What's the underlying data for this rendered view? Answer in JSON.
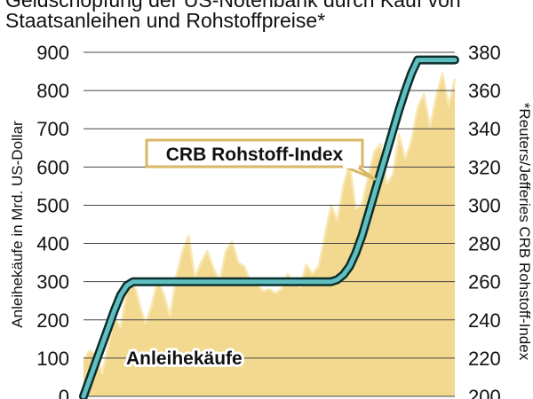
{
  "title_partial": "Geldschöpfung der US-Notenbank durch Kauf von",
  "title": "Staatsanleihen und Rohstoffpreise*",
  "chart_data": {
    "type": "area",
    "x": [
      0,
      1,
      2,
      3,
      4,
      5,
      6,
      7,
      8,
      9,
      10,
      11,
      12,
      13,
      14,
      15,
      16,
      17,
      18,
      19,
      20,
      21,
      22,
      23,
      24,
      25,
      26,
      27,
      28,
      29,
      30,
      31,
      32,
      33,
      34,
      35,
      36,
      37,
      38,
      39,
      40,
      41,
      42,
      43,
      44,
      45,
      46,
      47,
      48,
      49,
      50,
      51,
      52,
      53,
      54,
      55,
      56,
      57,
      58,
      59,
      60
    ],
    "series": [
      {
        "name": "CRB Rohstoff-Index",
        "axis": "right",
        "color": "#f3d98f",
        "values": [
          219,
          224,
          222,
          212,
          226,
          241,
          236,
          255,
          262,
          249,
          238,
          247,
          261,
          253,
          242,
          263,
          276,
          284,
          262,
          270,
          276,
          267,
          260,
          276,
          281,
          270,
          268,
          260,
          259,
          255,
          256,
          254,
          256,
          264,
          259,
          257,
          269,
          264,
          268,
          284,
          300,
          292,
          310,
          322,
          298,
          300,
          315,
          328,
          332,
          311,
          316,
          337,
          324,
          334,
          351,
          358,
          341,
          357,
          369,
          352,
          366
        ]
      },
      {
        "name": "Anleihekäufe",
        "axis": "left",
        "color": "#5fbfc0",
        "values": [
          0,
          45,
          90,
          135,
          180,
          225,
          265,
          290,
          300,
          300,
          300,
          300,
          300,
          300,
          300,
          300,
          300,
          300,
          300,
          300,
          300,
          300,
          300,
          300,
          300,
          300,
          300,
          300,
          300,
          300,
          300,
          300,
          300,
          300,
          300,
          300,
          300,
          300,
          300,
          300,
          300,
          305,
          318,
          340,
          375,
          420,
          475,
          530,
          585,
          640,
          695,
          750,
          800,
          845,
          880,
          880,
          880,
          880,
          880,
          880,
          880
        ]
      }
    ],
    "left_axis": {
      "label": "Anleihekäufe in Mrd. US-Dollar",
      "ylim": [
        0,
        900
      ],
      "ticks": [
        0,
        100,
        200,
        300,
        400,
        500,
        600,
        700,
        800,
        900
      ]
    },
    "right_axis": {
      "label": "*Reuters/Jefferies CRB Rohstoff-Index",
      "ylim": [
        200,
        380
      ],
      "ticks": [
        200,
        220,
        240,
        260,
        280,
        300,
        320,
        340,
        360,
        380
      ]
    },
    "annotations": [
      {
        "text": "CRB Rohstoff-Index",
        "style": "boxed"
      },
      {
        "text": "Anleihekäufe",
        "style": "plain"
      }
    ],
    "grid": true
  },
  "colors": {
    "grid": "#444444",
    "area_fill": "#f3d98f",
    "area_light": "#f8e7b3",
    "bond_line": "#5fbfc0",
    "bond_outline": "#0d2d2d",
    "box_border": "#d8b765"
  }
}
